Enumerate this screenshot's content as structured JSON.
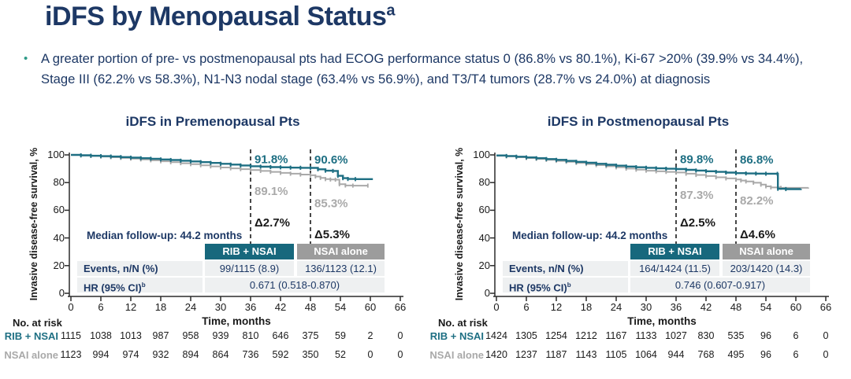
{
  "slide": {
    "title": "iDFS by Menopausal Status",
    "title_sup": "a",
    "bullet_glyph": "•",
    "bullet": "A greater portion of pre- vs postmenopausal pts had ECOG performance status 0 (86.8% vs 80.1%), Ki-67 >20% (39.9% vs 34.4%), Stage III (62.2% vs 58.3%), N1-N3 nodal stage (63.4% vs 56.9%), and T3/T4 tumors (28.7% vs 24.0%) at diagnosis"
  },
  "colors": {
    "navy": "#1d3865",
    "teal": "#1e6f83",
    "teal_header": "#17687d",
    "gray": "#a9a9a9",
    "gray_header": "#9c9c9c",
    "row_band": "#eef0f1",
    "black": "#1a1a1a",
    "bullet_green": "#2e9a87"
  },
  "chart_data": [
    {
      "type": "line",
      "title": "iDFS in Premenopausal Pts",
      "ylabel": "Invasive disease-free survival, %",
      "xlabel": "Time, months",
      "ylim": [
        0,
        100
      ],
      "y_ticks": [
        0,
        20,
        40,
        60,
        80,
        100
      ],
      "x_ticks": [
        0,
        6,
        12,
        18,
        24,
        30,
        36,
        42,
        48,
        54,
        60,
        66
      ],
      "grid": false,
      "median_followup": "Median follow-up: 44.2 months",
      "dashed_lines_months": [
        36,
        48
      ],
      "pct_labels": [
        {
          "month": 36,
          "text": "91.8%",
          "color": "teal",
          "y_pct": 97
        },
        {
          "month": 48,
          "text": "90.6%",
          "color": "teal",
          "y_pct": 96.5
        },
        {
          "month": 36,
          "text": "89.1%",
          "color": "gray",
          "y_pct": 74
        },
        {
          "month": 48,
          "text": "85.3%",
          "color": "gray",
          "y_pct": 65
        },
        {
          "month": 36,
          "text": "Δ2.7%",
          "color": "black",
          "y_pct": 51
        },
        {
          "month": 48,
          "text": "Δ5.3%",
          "color": "black",
          "y_pct": 42.5
        }
      ],
      "series": [
        {
          "name": "NSAI alone",
          "color": "gray",
          "points": [
            [
              0,
              100
            ],
            [
              2,
              99.6
            ],
            [
              4,
              99.2
            ],
            [
              6,
              98.8
            ],
            [
              8,
              98.3
            ],
            [
              10,
              97.8
            ],
            [
              12,
              97.3
            ],
            [
              14,
              96.7
            ],
            [
              16,
              96.1
            ],
            [
              18,
              95.4
            ],
            [
              20,
              94.7
            ],
            [
              22,
              94.0
            ],
            [
              24,
              93.3
            ],
            [
              26,
              92.5
            ],
            [
              28,
              91.7
            ],
            [
              30,
              90.9
            ],
            [
              32,
              90.3
            ],
            [
              34,
              89.7
            ],
            [
              36,
              89.1
            ],
            [
              38,
              88.4
            ],
            [
              40,
              87.7
            ],
            [
              42,
              87.0
            ],
            [
              44,
              86.4
            ],
            [
              46,
              85.8
            ],
            [
              48,
              85.3
            ],
            [
              49,
              84.4
            ],
            [
              50,
              83.4
            ],
            [
              51,
              82.5
            ],
            [
              52,
              82.2
            ],
            [
              53,
              82.1
            ],
            [
              53.8,
              78.8
            ],
            [
              55,
              77.9
            ],
            [
              56.5,
              77.8
            ],
            [
              59.5,
              77.8
            ]
          ]
        },
        {
          "name": "RIB + NSAI",
          "color": "teal",
          "points": [
            [
              0,
              100
            ],
            [
              2,
              99.7
            ],
            [
              4,
              99.4
            ],
            [
              6,
              99.1
            ],
            [
              8,
              98.8
            ],
            [
              10,
              98.4
            ],
            [
              12,
              98.0
            ],
            [
              14,
              97.6
            ],
            [
              16,
              97.2
            ],
            [
              18,
              96.7
            ],
            [
              20,
              96.3
            ],
            [
              22,
              95.8
            ],
            [
              24,
              95.3
            ],
            [
              26,
              94.8
            ],
            [
              28,
              94.2
            ],
            [
              30,
              93.6
            ],
            [
              32,
              93.0
            ],
            [
              34,
              92.4
            ],
            [
              36,
              91.8
            ],
            [
              38,
              91.5
            ],
            [
              40,
              91.2
            ],
            [
              42,
              91.0
            ],
            [
              44,
              90.8
            ],
            [
              46,
              90.7
            ],
            [
              48,
              90.6
            ],
            [
              49.5,
              89.6
            ],
            [
              51,
              88.6
            ],
            [
              52.5,
              88.4
            ],
            [
              53.5,
              84.9
            ],
            [
              54.5,
              83.2
            ],
            [
              55.5,
              82.6
            ],
            [
              57,
              82.5
            ],
            [
              60.5,
              82.5
            ]
          ]
        }
      ],
      "table": {
        "col_headers": [
          "RIB + NSAI",
          "NSAI alone"
        ],
        "events_label": "Events, n/N (%)",
        "events_values": [
          "99/1115 (8.9)",
          "136/1123 (12.1)"
        ],
        "hr_label": "HR (95% CI)",
        "hr_sup": "b",
        "hr_value": "0.671 (0.518-0.870)"
      },
      "at_risk": {
        "title": "No. at risk",
        "rows": [
          {
            "name": "RIB + NSAI",
            "values": [
              1115,
              1038,
              1013,
              987,
              958,
              939,
              810,
              646,
              375,
              59,
              2,
              0
            ]
          },
          {
            "name": "NSAI alone",
            "values": [
              1123,
              994,
              974,
              932,
              894,
              864,
              736,
              592,
              350,
              52,
              0,
              0
            ]
          }
        ]
      }
    },
    {
      "type": "line",
      "title": "iDFS in Postmenopausal Pts",
      "ylabel": "Invasive disease-free survival, %",
      "xlabel": "Time, months",
      "ylim": [
        0,
        100
      ],
      "y_ticks": [
        0,
        20,
        40,
        60,
        80,
        100
      ],
      "x_ticks": [
        0,
        6,
        12,
        18,
        24,
        30,
        36,
        42,
        48,
        54,
        60,
        66
      ],
      "grid": false,
      "median_followup": "Median follow-up: 44.2 months",
      "dashed_lines_months": [
        36,
        48
      ],
      "pct_labels": [
        {
          "month": 36,
          "text": "89.8%",
          "color": "teal",
          "y_pct": 97
        },
        {
          "month": 48,
          "text": "86.8%",
          "color": "teal",
          "y_pct": 96.5
        },
        {
          "month": 36,
          "text": "87.3%",
          "color": "gray",
          "y_pct": 71
        },
        {
          "month": 48,
          "text": "82.2%",
          "color": "gray",
          "y_pct": 67
        },
        {
          "month": 36,
          "text": "Δ2.5%",
          "color": "black",
          "y_pct": 51
        },
        {
          "month": 48,
          "text": "Δ4.6%",
          "color": "black",
          "y_pct": 42.5
        }
      ],
      "series": [
        {
          "name": "NSAI alone",
          "color": "gray",
          "points": [
            [
              0,
              99.4
            ],
            [
              2,
              98.9
            ],
            [
              4,
              98.3
            ],
            [
              6,
              97.7
            ],
            [
              8,
              97.1
            ],
            [
              10,
              96.4
            ],
            [
              12,
              95.7
            ],
            [
              14,
              95.0
            ],
            [
              16,
              94.2
            ],
            [
              18,
              93.4
            ],
            [
              20,
              92.6
            ],
            [
              22,
              91.8
            ],
            [
              24,
              91.0
            ],
            [
              26,
              90.1
            ],
            [
              28,
              89.3
            ],
            [
              30,
              88.6
            ],
            [
              32,
              88.1
            ],
            [
              34,
              87.7
            ],
            [
              36,
              87.3
            ],
            [
              38,
              86.4
            ],
            [
              40,
              85.5
            ],
            [
              42,
              84.7
            ],
            [
              44,
              83.8
            ],
            [
              46,
              83.0
            ],
            [
              48,
              82.2
            ],
            [
              49,
              81.5
            ],
            [
              50,
              80.8
            ],
            [
              51.5,
              79.9
            ],
            [
              53,
              78.5
            ],
            [
              54,
              77.3
            ],
            [
              55,
              76.5
            ],
            [
              57,
              76.2
            ],
            [
              60,
              76.2
            ],
            [
              62.5,
              76.4
            ]
          ]
        },
        {
          "name": "RIB + NSAI",
          "color": "teal",
          "points": [
            [
              0,
              99.6
            ],
            [
              2,
              99.2
            ],
            [
              4,
              98.7
            ],
            [
              6,
              98.2
            ],
            [
              8,
              97.6
            ],
            [
              10,
              97.0
            ],
            [
              12,
              96.4
            ],
            [
              14,
              95.7
            ],
            [
              16,
              95.0
            ],
            [
              18,
              94.3
            ],
            [
              20,
              93.6
            ],
            [
              22,
              92.9
            ],
            [
              24,
              92.2
            ],
            [
              26,
              91.6
            ],
            [
              28,
              91.1
            ],
            [
              30,
              90.7
            ],
            [
              32,
              90.3
            ],
            [
              34,
              90.0
            ],
            [
              36,
              89.8
            ],
            [
              38,
              89.2
            ],
            [
              40,
              88.7
            ],
            [
              42,
              88.2
            ],
            [
              44,
              87.7
            ],
            [
              46,
              87.2
            ],
            [
              48,
              86.8
            ],
            [
              50,
              86.6
            ],
            [
              52,
              86.5
            ],
            [
              54,
              86.4
            ],
            [
              56.3,
              86.3
            ],
            [
              56.4,
              75.5
            ],
            [
              58,
              75.3
            ],
            [
              61,
              75.5
            ]
          ]
        }
      ],
      "table": {
        "col_headers": [
          "RIB + NSAI",
          "NSAI alone"
        ],
        "events_label": "Events, n/N (%)",
        "events_values": [
          "164/1424 (11.5)",
          "203/1420 (14.3)"
        ],
        "hr_label": "HR (95% CI)",
        "hr_sup": "b",
        "hr_value": "0.746 (0.607-0.917)"
      },
      "at_risk": {
        "title": "No. at risk",
        "rows": [
          {
            "name": "RIB + NSAI",
            "values": [
              1424,
              1305,
              1254,
              1212,
              1167,
              1133,
              1027,
              830,
              535,
              96,
              6,
              0
            ]
          },
          {
            "name": "NSAI alone",
            "values": [
              1420,
              1237,
              1187,
              1143,
              1105,
              1064,
              944,
              768,
              495,
              96,
              6,
              0
            ]
          }
        ]
      }
    }
  ]
}
